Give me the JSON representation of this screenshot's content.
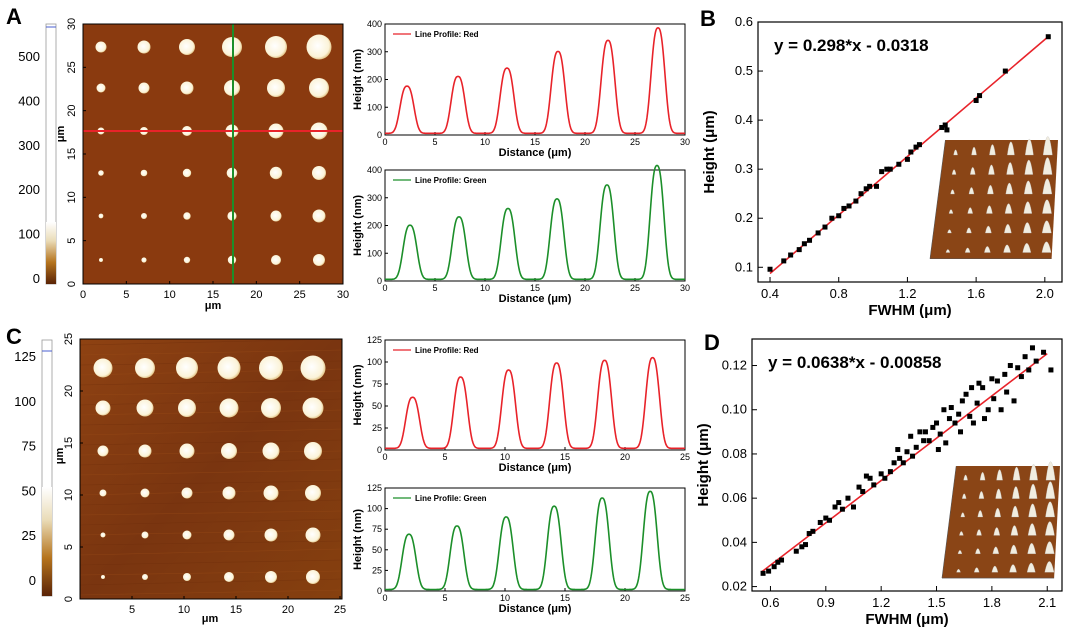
{
  "panel_labels": [
    "A",
    "B",
    "C",
    "D"
  ],
  "colors": {
    "red": "#e8232a",
    "green": "#1c8f2a",
    "afm_dark": "#6b2c0a",
    "afm_base": "#8a3a0f",
    "dot": "#fbf6e6"
  },
  "afm_A": {
    "colorbar_ticks": [
      "0",
      "100",
      "200",
      "300",
      "400",
      "500"
    ],
    "y_ticks": [
      "0",
      "5",
      "10",
      "15",
      "20",
      "25",
      "30"
    ],
    "x_ticks": [
      "0",
      "5",
      "10",
      "15",
      "20",
      "25",
      "30"
    ],
    "ylabel": "μm",
    "xlabel": "μm"
  },
  "afm_C": {
    "colorbar_ticks": [
      "0",
      "25",
      "50",
      "75",
      "100",
      "125"
    ],
    "y_ticks": [
      "0",
      "5",
      "10",
      "15",
      "20",
      "25"
    ],
    "x_ticks": [
      "5",
      "10",
      "15",
      "20",
      "25"
    ],
    "ylabel": "μm",
    "xlabel": "μm"
  },
  "chart_data": [
    {
      "type": "line",
      "panel": "A-top",
      "legend": "Line Profile: Red",
      "xlabel": "Distance (μm)",
      "ylabel": "Height (nm)",
      "xlim": [
        0,
        30
      ],
      "ylim": [
        0,
        400
      ],
      "x_ticks": [
        0,
        5,
        10,
        15,
        20,
        25,
        30
      ],
      "y_ticks": [
        0,
        100,
        200,
        300,
        400
      ],
      "peak_centers": [
        2.2,
        7.3,
        12.2,
        17.3,
        22.3,
        27.3
      ],
      "peak_heights": [
        170,
        205,
        235,
        295,
        335,
        380
      ]
    },
    {
      "type": "line",
      "panel": "A-bottom",
      "legend": "Line Profile: Green",
      "xlabel": "Distance (μm)",
      "ylabel": "Height (nm)",
      "xlim": [
        0,
        30
      ],
      "ylim": [
        0,
        400
      ],
      "x_ticks": [
        0,
        5,
        10,
        15,
        20,
        25,
        30
      ],
      "y_ticks": [
        0,
        100,
        200,
        300,
        400
      ],
      "peak_centers": [
        2.5,
        7.4,
        12.3,
        17.2,
        22.2,
        27.2
      ],
      "peak_heights": [
        195,
        225,
        255,
        290,
        340,
        410
      ]
    },
    {
      "type": "line",
      "panel": "C-top",
      "legend": "Line Profile: Red",
      "xlabel": "Distance (μm)",
      "ylabel": "Height (nm)",
      "xlim": [
        0,
        25
      ],
      "ylim": [
        0,
        125
      ],
      "x_ticks": [
        0,
        5,
        10,
        15,
        20,
        25
      ],
      "y_ticks": [
        0,
        25,
        50,
        75,
        100,
        125
      ],
      "peak_centers": [
        2.3,
        6.3,
        10.3,
        14.3,
        18.3,
        22.3
      ],
      "peak_heights": [
        58,
        81,
        89,
        97,
        100,
        103
      ]
    },
    {
      "type": "line",
      "panel": "C-bottom",
      "legend": "Line Profile: Green",
      "xlabel": "Distance (μm)",
      "ylabel": "Height (nm)",
      "xlim": [
        0,
        25
      ],
      "ylim": [
        0,
        125
      ],
      "x_ticks": [
        0,
        5,
        10,
        15,
        20,
        25
      ],
      "y_ticks": [
        0,
        25,
        50,
        75,
        100,
        125
      ],
      "peak_centers": [
        2.0,
        6.0,
        10.1,
        14.1,
        18.1,
        22.1
      ],
      "peak_heights": [
        67,
        77,
        88,
        101,
        111,
        119
      ]
    },
    {
      "type": "scatter",
      "panel": "B",
      "equation": "y = 0.298*x - 0.0318",
      "xlabel": "FWHM (μm)",
      "ylabel": "Height (μm)",
      "xlim": [
        0.33,
        2.1
      ],
      "ylim": [
        0.07,
        0.6
      ],
      "x_ticks": [
        "0.4",
        "0.8",
        "1.2",
        "1.6",
        "2.0"
      ],
      "y_ticks": [
        "0.1",
        "0.2",
        "0.3",
        "0.4",
        "0.5",
        "0.6"
      ],
      "fit": {
        "slope": 0.298,
        "intercept": -0.0318,
        "x_range": [
          0.4,
          2.02
        ]
      },
      "points": [
        [
          0.4,
          0.096
        ],
        [
          0.48,
          0.113
        ],
        [
          0.52,
          0.125
        ],
        [
          0.57,
          0.136
        ],
        [
          0.6,
          0.148
        ],
        [
          0.63,
          0.155
        ],
        [
          0.68,
          0.17
        ],
        [
          0.72,
          0.182
        ],
        [
          0.76,
          0.2
        ],
        [
          0.8,
          0.205
        ],
        [
          0.83,
          0.22
        ],
        [
          0.86,
          0.225
        ],
        [
          0.9,
          0.235
        ],
        [
          0.93,
          0.25
        ],
        [
          0.96,
          0.26
        ],
        [
          0.98,
          0.265
        ],
        [
          1.02,
          0.265
        ],
        [
          1.05,
          0.295
        ],
        [
          1.08,
          0.3
        ],
        [
          1.1,
          0.3
        ],
        [
          1.15,
          0.31
        ],
        [
          1.2,
          0.32
        ],
        [
          1.22,
          0.335
        ],
        [
          1.25,
          0.345
        ],
        [
          1.27,
          0.35
        ],
        [
          1.4,
          0.385
        ],
        [
          1.42,
          0.39
        ],
        [
          1.43,
          0.38
        ],
        [
          1.6,
          0.44
        ],
        [
          1.62,
          0.45
        ],
        [
          1.77,
          0.5
        ],
        [
          2.02,
          0.57
        ]
      ]
    },
    {
      "type": "scatter",
      "panel": "D",
      "equation": "y = 0.0638*x - 0.00858",
      "xlabel": "FWHM (μm)",
      "ylabel": "Height (μm)",
      "xlim": [
        0.5,
        2.18
      ],
      "ylim": [
        0.018,
        0.132
      ],
      "x_ticks": [
        "0.6",
        "0.9",
        "1.2",
        "1.5",
        "1.8",
        "2.1"
      ],
      "y_ticks": [
        "0.02",
        "0.04",
        "0.06",
        "0.08",
        "0.10",
        "0.12"
      ],
      "fit": {
        "slope": 0.0638,
        "intercept": -0.00858,
        "x_range": [
          0.55,
          2.1
        ]
      },
      "points": [
        [
          0.56,
          0.026
        ],
        [
          0.59,
          0.027
        ],
        [
          0.62,
          0.029
        ],
        [
          0.64,
          0.031
        ],
        [
          0.66,
          0.032
        ],
        [
          0.74,
          0.036
        ],
        [
          0.77,
          0.038
        ],
        [
          0.79,
          0.039
        ],
        [
          0.81,
          0.044
        ],
        [
          0.83,
          0.045
        ],
        [
          0.87,
          0.049
        ],
        [
          0.9,
          0.051
        ],
        [
          0.92,
          0.05
        ],
        [
          0.95,
          0.056
        ],
        [
          0.97,
          0.058
        ],
        [
          0.99,
          0.055
        ],
        [
          1.02,
          0.06
        ],
        [
          1.05,
          0.056
        ],
        [
          1.08,
          0.065
        ],
        [
          1.1,
          0.063
        ],
        [
          1.12,
          0.07
        ],
        [
          1.14,
          0.069
        ],
        [
          1.16,
          0.066
        ],
        [
          1.2,
          0.071
        ],
        [
          1.22,
          0.069
        ],
        [
          1.25,
          0.072
        ],
        [
          1.27,
          0.076
        ],
        [
          1.29,
          0.082
        ],
        [
          1.3,
          0.078
        ],
        [
          1.32,
          0.076
        ],
        [
          1.34,
          0.081
        ],
        [
          1.36,
          0.088
        ],
        [
          1.37,
          0.079
        ],
        [
          1.39,
          0.083
        ],
        [
          1.41,
          0.09
        ],
        [
          1.43,
          0.086
        ],
        [
          1.44,
          0.09
        ],
        [
          1.46,
          0.086
        ],
        [
          1.48,
          0.092
        ],
        [
          1.5,
          0.094
        ],
        [
          1.51,
          0.082
        ],
        [
          1.52,
          0.089
        ],
        [
          1.54,
          0.1
        ],
        [
          1.55,
          0.085
        ],
        [
          1.57,
          0.096
        ],
        [
          1.58,
          0.101
        ],
        [
          1.6,
          0.094
        ],
        [
          1.62,
          0.098
        ],
        [
          1.63,
          0.09
        ],
        [
          1.64,
          0.104
        ],
        [
          1.66,
          0.107
        ],
        [
          1.68,
          0.097
        ],
        [
          1.69,
          0.11
        ],
        [
          1.7,
          0.094
        ],
        [
          1.72,
          0.103
        ],
        [
          1.73,
          0.112
        ],
        [
          1.75,
          0.11
        ],
        [
          1.76,
          0.096
        ],
        [
          1.78,
          0.1
        ],
        [
          1.8,
          0.114
        ],
        [
          1.81,
          0.105
        ],
        [
          1.83,
          0.113
        ],
        [
          1.85,
          0.1
        ],
        [
          1.87,
          0.116
        ],
        [
          1.88,
          0.108
        ],
        [
          1.9,
          0.12
        ],
        [
          1.92,
          0.104
        ],
        [
          1.94,
          0.119
        ],
        [
          1.96,
          0.115
        ],
        [
          1.98,
          0.124
        ],
        [
          2.0,
          0.118
        ],
        [
          2.02,
          0.128
        ],
        [
          2.04,
          0.122
        ],
        [
          2.08,
          0.126
        ],
        [
          2.12,
          0.118
        ]
      ]
    }
  ]
}
